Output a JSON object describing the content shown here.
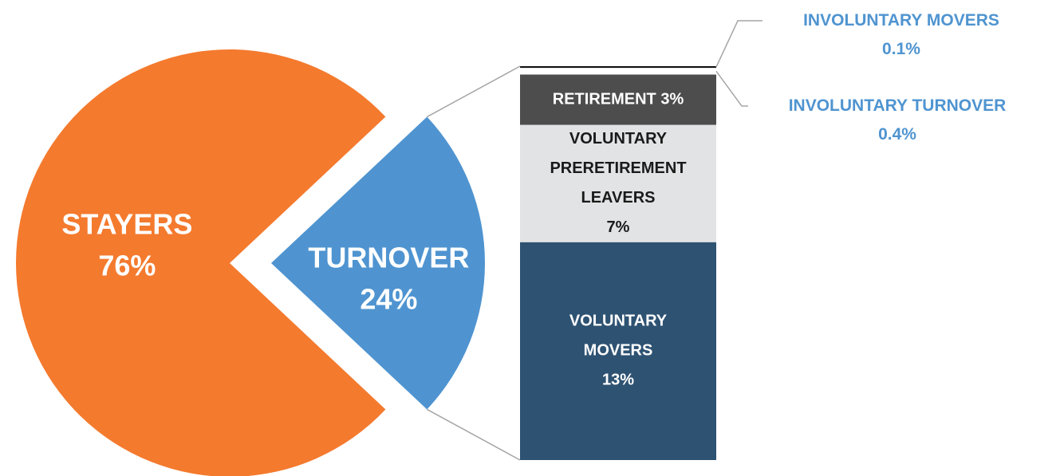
{
  "chart_data": [
    {
      "type": "pie",
      "categories": [
        "STAYERS",
        "TURNOVER"
      ],
      "values": [
        76,
        24
      ],
      "value_labels": [
        "76%",
        "24%"
      ],
      "colors": [
        "#f47a2e",
        "#4f94d0"
      ]
    },
    {
      "type": "bar",
      "categories": [
        "VOLUNTARY MOVERS",
        "VOLUNTARY PRERETIREMENT LEAVERS",
        "RETIREMENT",
        "INVOLUNTARY TURNOVER",
        "INVOLUNTARY MOVERS"
      ],
      "values": [
        13,
        7,
        3,
        0.4,
        0.1
      ],
      "value_labels": [
        "13%",
        "7%",
        "3%",
        "0.4%",
        "0.1%"
      ],
      "colors": [
        "#2e5272",
        "#e2e3e5",
        "#4d4d4d",
        "#ffffff",
        "#111111"
      ]
    }
  ]
}
